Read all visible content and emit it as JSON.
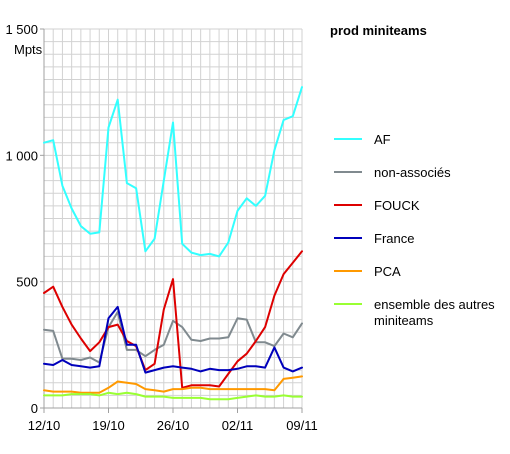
{
  "chart_data": {
    "type": "line",
    "title": "prod miniteams",
    "ylabel": "Mpts",
    "ylim": [
      0,
      1500
    ],
    "y_ticks": [
      0,
      500,
      1000,
      1500
    ],
    "y_tick_labels": [
      "0",
      "500",
      "1 000",
      "1 500"
    ],
    "x_tick_labels": [
      "12/10",
      "19/10",
      "26/10",
      "02/11",
      "09/11"
    ],
    "x_tick_days": [
      0,
      7,
      14,
      21,
      28
    ],
    "grid": true,
    "legend_position": "right",
    "series": [
      {
        "name": "AF",
        "color": "#33ffff",
        "values": [
          1050,
          1060,
          880,
          790,
          720,
          690,
          695,
          1110,
          1220,
          890,
          870,
          620,
          670,
          900,
          1130,
          650,
          615,
          605,
          610,
          600,
          655,
          780,
          830,
          800,
          840,
          1020,
          1140,
          1155,
          1270
        ]
      },
      {
        "name": "non-associés",
        "color": "#808a8f",
        "values": [
          310,
          305,
          195,
          195,
          190,
          200,
          180,
          320,
          380,
          230,
          230,
          205,
          230,
          250,
          345,
          320,
          270,
          265,
          275,
          275,
          280,
          355,
          350,
          260,
          260,
          245,
          295,
          280,
          335
        ]
      },
      {
        "name": "FOUCK",
        "color": "#dd0000",
        "values": [
          455,
          480,
          400,
          330,
          275,
          225,
          260,
          320,
          330,
          265,
          245,
          150,
          175,
          390,
          510,
          80,
          90,
          90,
          90,
          85,
          135,
          185,
          215,
          265,
          320,
          445,
          530,
          575,
          620
        ]
      },
      {
        "name": "France",
        "color": "#0000bb",
        "values": [
          175,
          170,
          190,
          170,
          165,
          160,
          165,
          355,
          400,
          250,
          250,
          140,
          150,
          160,
          165,
          160,
          155,
          145,
          155,
          150,
          150,
          155,
          165,
          165,
          160,
          240,
          160,
          145,
          160
        ]
      },
      {
        "name": "PCA",
        "color": "#ff9900",
        "values": [
          70,
          65,
          65,
          65,
          60,
          60,
          60,
          80,
          105,
          100,
          95,
          75,
          70,
          65,
          75,
          75,
          80,
          80,
          75,
          75,
          75,
          75,
          75,
          75,
          75,
          70,
          115,
          120,
          125
        ]
      },
      {
        "name": "ensemble des autres miniteams",
        "color": "#99ff33",
        "values": [
          50,
          50,
          50,
          55,
          55,
          55,
          50,
          60,
          55,
          60,
          55,
          45,
          45,
          45,
          40,
          40,
          40,
          40,
          35,
          35,
          35,
          40,
          45,
          50,
          45,
          45,
          50,
          45,
          45
        ]
      }
    ]
  }
}
